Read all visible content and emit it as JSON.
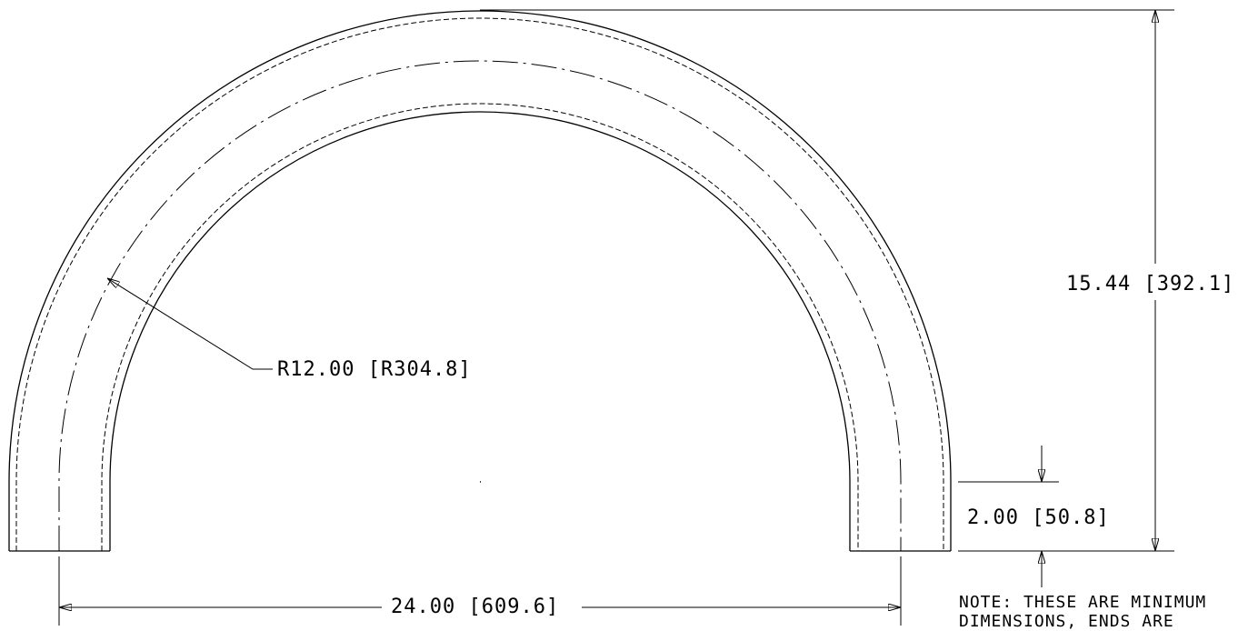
{
  "dimensions": {
    "radius_label": "R12.00 [R304.8]",
    "height_label": "15.44 [392.1]",
    "straight_label": "2.00 [50.8]",
    "width_label": "24.00 [609.6]"
  },
  "note": {
    "line1": "NOTE: THESE ARE MINIMUM",
    "line2": "DIMENSIONS, ENDS ARE"
  }
}
